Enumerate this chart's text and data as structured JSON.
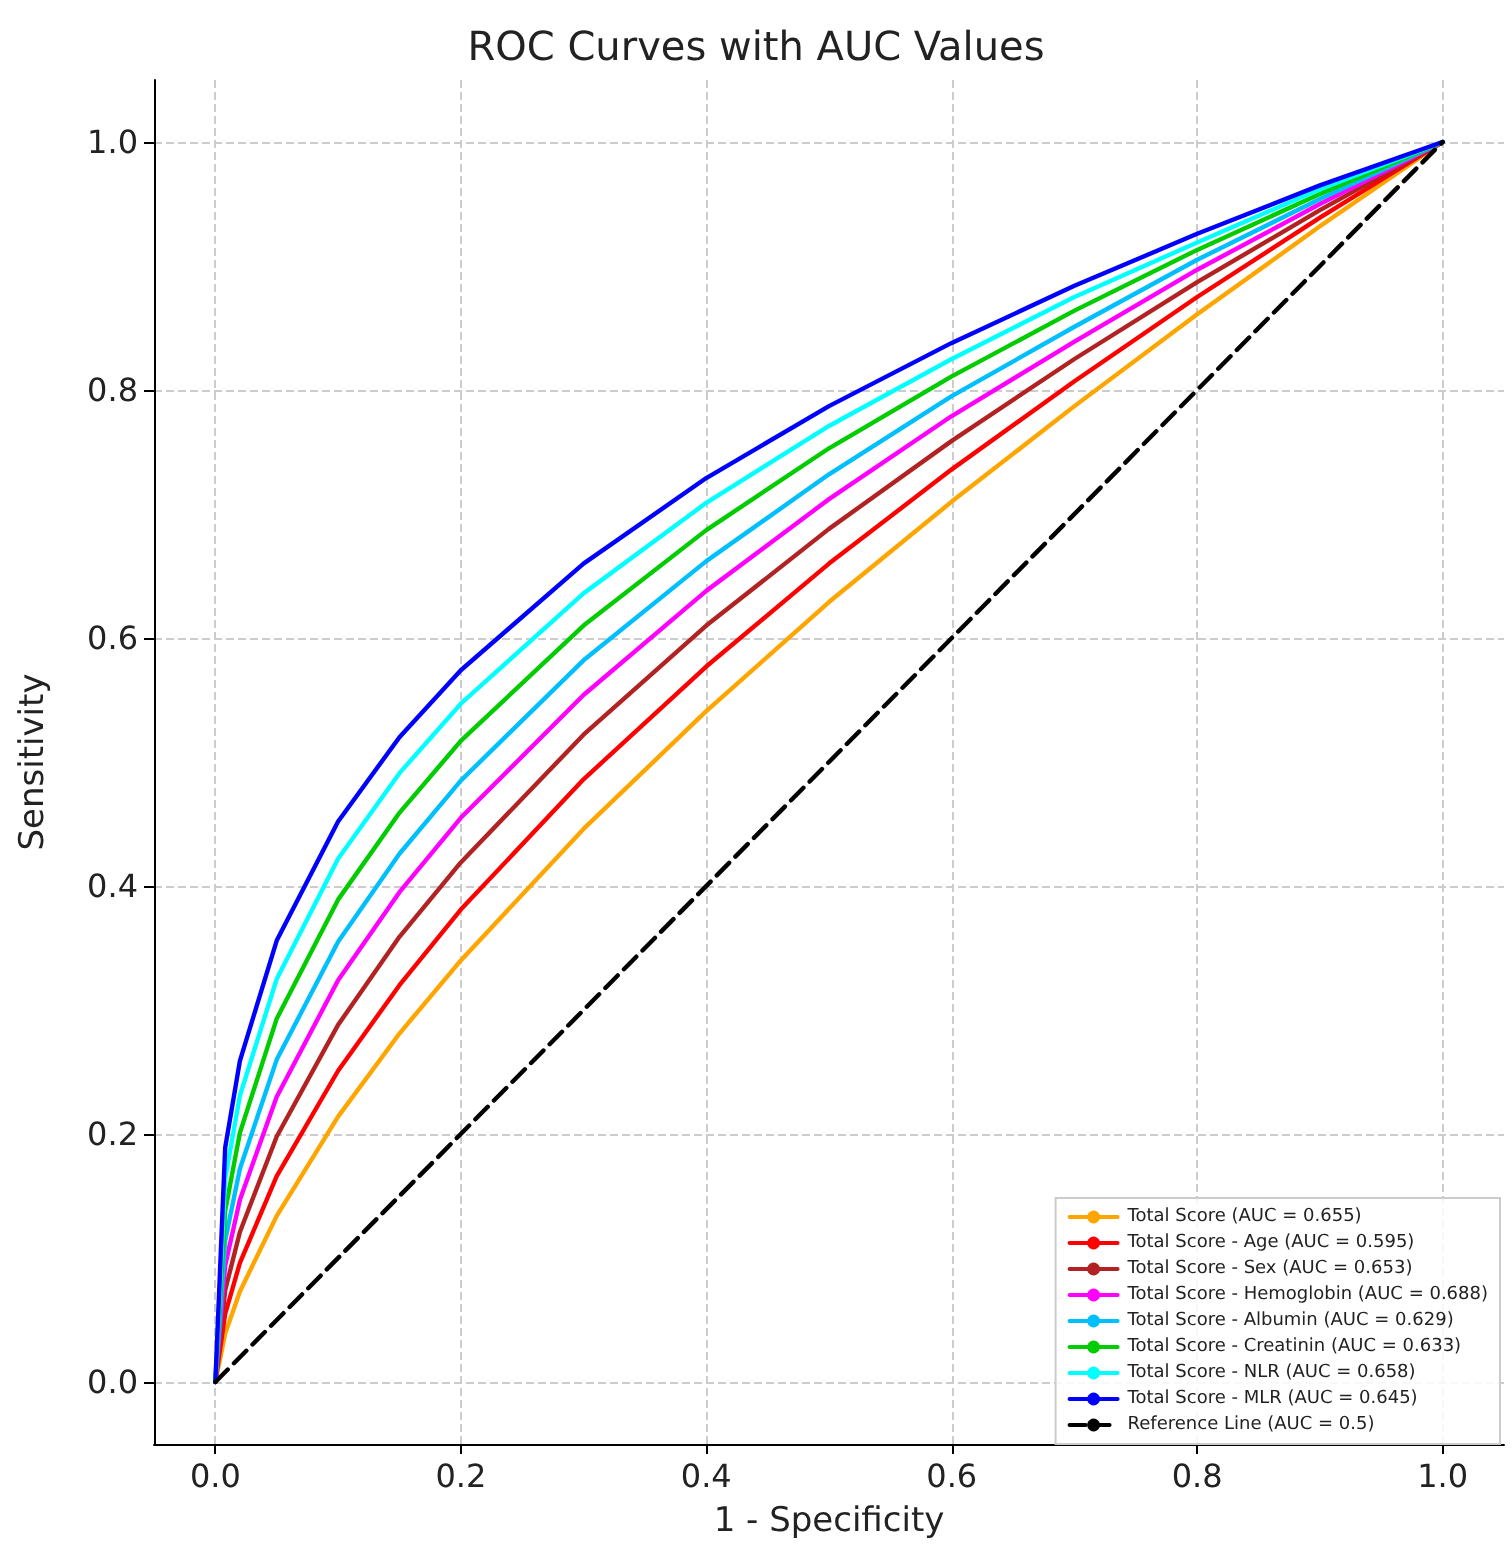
{
  "chart_data": {
    "type": "line",
    "title": "ROC Curves with AUC Values",
    "xlabel": "1 - Specificity",
    "ylabel": "Sensitivity",
    "x": [
      0,
      0.008,
      0.02,
      0.05,
      0.1,
      0.15,
      0.2,
      0.3,
      0.4,
      0.5,
      0.6,
      0.7,
      0.8,
      0.9,
      1
    ],
    "series": [
      {
        "name": "Total Score (AUC = 0.655)",
        "color": "#ffa500",
        "values": [
          0,
          0.039,
          0.073,
          0.134,
          0.214,
          0.281,
          0.34,
          0.446,
          0.541,
          0.629,
          0.71,
          0.787,
          0.861,
          0.932,
          1
        ]
      },
      {
        "name": "Total Score - Age (AUC = 0.595)",
        "color": "#ff0000",
        "values": [
          0,
          0.055,
          0.096,
          0.166,
          0.251,
          0.32,
          0.381,
          0.486,
          0.577,
          0.66,
          0.736,
          0.807,
          0.875,
          0.939,
          1
        ]
      },
      {
        "name": "Total Score - Sex (AUC = 0.653)",
        "color": "#b22222",
        "values": [
          0,
          0.074,
          0.121,
          0.198,
          0.288,
          0.359,
          0.419,
          0.522,
          0.61,
          0.688,
          0.759,
          0.825,
          0.887,
          0.945,
          1
        ]
      },
      {
        "name": "Total Score - Hemoglobin (AUC = 0.688)",
        "color": "#ff00ff",
        "values": [
          0,
          0.094,
          0.147,
          0.23,
          0.324,
          0.395,
          0.455,
          0.554,
          0.638,
          0.712,
          0.779,
          0.839,
          0.897,
          0.95,
          1
        ]
      },
      {
        "name": "Total Score - Albumin (AUC = 0.629)",
        "color": "#00bfff",
        "values": [
          0,
          0.114,
          0.172,
          0.26,
          0.355,
          0.426,
          0.485,
          0.582,
          0.662,
          0.732,
          0.795,
          0.851,
          0.905,
          0.954,
          1
        ]
      },
      {
        "name": "Total Score - Creatinin (AUC = 0.633)",
        "color": "#00cc00",
        "values": [
          0,
          0.138,
          0.201,
          0.293,
          0.389,
          0.459,
          0.517,
          0.61,
          0.687,
          0.753,
          0.811,
          0.864,
          0.913,
          0.958,
          1
        ]
      },
      {
        "name": "Total Score - NLR (AUC = 0.658)",
        "color": "#00ffff",
        "values": [
          0,
          0.164,
          0.231,
          0.325,
          0.422,
          0.491,
          0.547,
          0.636,
          0.709,
          0.771,
          0.825,
          0.875,
          0.919,
          0.962,
          1
        ]
      },
      {
        "name": "Total Score - MLR (AUC = 0.645)",
        "color": "#0000ff",
        "values": [
          0,
          0.189,
          0.259,
          0.356,
          0.452,
          0.52,
          0.574,
          0.66,
          0.729,
          0.787,
          0.838,
          0.884,
          0.926,
          0.965,
          1
        ]
      },
      {
        "name": "Reference Line (AUC = 0.5)",
        "color": "#000000",
        "line_style": "dashed",
        "x": [
          0,
          1
        ],
        "values": [
          0,
          1
        ]
      }
    ],
    "xlim": [
      -0.05,
      1.05
    ],
    "ylim": [
      -0.05,
      1.05
    ],
    "xticks": [
      {
        "value": 0,
        "label": "0.0"
      },
      {
        "value": 0.2,
        "label": "0.2"
      },
      {
        "value": 0.4,
        "label": "0.4"
      },
      {
        "value": 0.6,
        "label": "0.6"
      },
      {
        "value": 0.8,
        "label": "0.8"
      },
      {
        "value": 1,
        "label": "1.0"
      }
    ],
    "yticks": [
      {
        "value": 0,
        "label": "0.0"
      },
      {
        "value": 0.2,
        "label": "0.2"
      },
      {
        "value": 0.4,
        "label": "0.4"
      },
      {
        "value": 0.6,
        "label": "0.6"
      },
      {
        "value": 0.8,
        "label": "0.8"
      },
      {
        "value": 1,
        "label": "1.0"
      }
    ],
    "grid": true,
    "legend": "bottom right",
    "marker": "none",
    "line_style": "solid"
  }
}
